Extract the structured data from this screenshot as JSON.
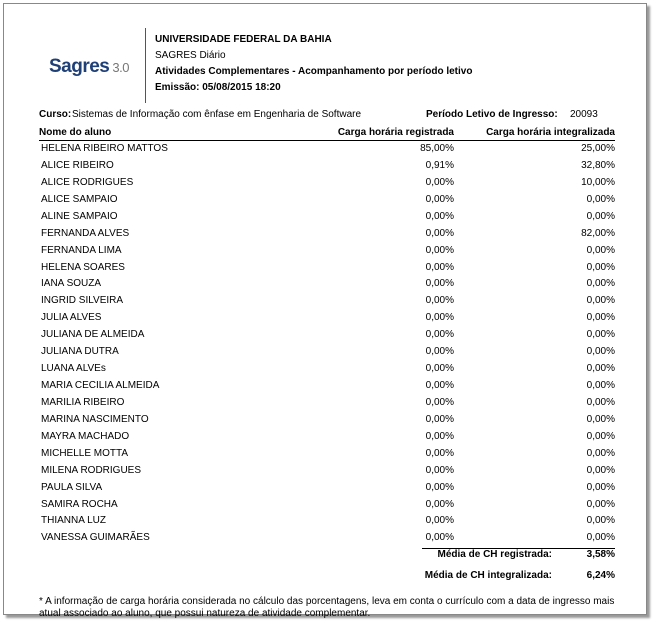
{
  "header": {
    "logo": {
      "name": "Sagres",
      "version": "3.0"
    },
    "lines": [
      "UNIVERSIDADE FEDERAL DA BAHIA",
      "SAGRES Diário",
      "Atividades Complementares - Acompanhamento por período letivo",
      "Emissão: 05/08/2015 18:20"
    ]
  },
  "course": {
    "label": "Curso:",
    "value": "Sistemas de Informação com ênfase em Engenharia de Software",
    "period_label": "Período Letivo de Ingresso:",
    "period_value": "20093"
  },
  "table": {
    "columns": [
      "Nome do aluno",
      "Carga horária registrada",
      "Carga horária integralizada"
    ],
    "rows": [
      [
        "HELENA RIBEIRO MATTOS",
        "85,00%",
        "25,00%"
      ],
      [
        "ALICE RIBEIRO",
        "0,91%",
        "32,80%"
      ],
      [
        "ALICE RODRIGUES",
        "0,00%",
        "10,00%"
      ],
      [
        "ALICE SAMPAIO",
        "0,00%",
        "0,00%"
      ],
      [
        "ALINE SAMPAIO",
        "0,00%",
        "0,00%"
      ],
      [
        "FERNANDA ALVES",
        "0,00%",
        "82,00%"
      ],
      [
        "FERNANDA LIMA",
        "0,00%",
        "0,00%"
      ],
      [
        "HELENA SOARES",
        "0,00%",
        "0,00%"
      ],
      [
        "IANA SOUZA",
        "0,00%",
        "0,00%"
      ],
      [
        "INGRID SILVEIRA",
        "0,00%",
        "0,00%"
      ],
      [
        "JULIA ALVES",
        "0,00%",
        "0,00%"
      ],
      [
        "JULIANA DE ALMEIDA",
        "0,00%",
        "0,00%"
      ],
      [
        "JULIANA DUTRA",
        "0,00%",
        "0,00%"
      ],
      [
        "LUANA ALVEs",
        "0,00%",
        "0,00%"
      ],
      [
        "MARIA CECILIA ALMEIDA",
        "0,00%",
        "0,00%"
      ],
      [
        "MARILIA RIBEIRO",
        "0,00%",
        "0,00%"
      ],
      [
        "MARINA NASCIMENTO",
        "0,00%",
        "0,00%"
      ],
      [
        "MAYRA MACHADO",
        "0,00%",
        "0,00%"
      ],
      [
        "MICHELLE MOTTA",
        "0,00%",
        "0,00%"
      ],
      [
        "MILENA RODRIGUES",
        "0,00%",
        "0,00%"
      ],
      [
        "PAULA SILVA",
        "0,00%",
        "0,00%"
      ],
      [
        "SAMIRA ROCHA",
        "0,00%",
        "0,00%"
      ],
      [
        "THIANNA LUZ",
        "0,00%",
        "0,00%"
      ],
      [
        "VANESSA GUIMARÃES",
        "0,00%",
        "0,00%"
      ]
    ]
  },
  "summary": [
    {
      "label": "Média de CH registrada:",
      "value": "3,58%"
    },
    {
      "label": "Média de CH integralizada:",
      "value": "6,24%"
    }
  ],
  "footnote": "* A informação de carga horária considerada no cálculo das porcentagens, leva em conta o currículo com a data de ingresso mais atual associado ao aluno, que possui natureza de atividade complementar."
}
